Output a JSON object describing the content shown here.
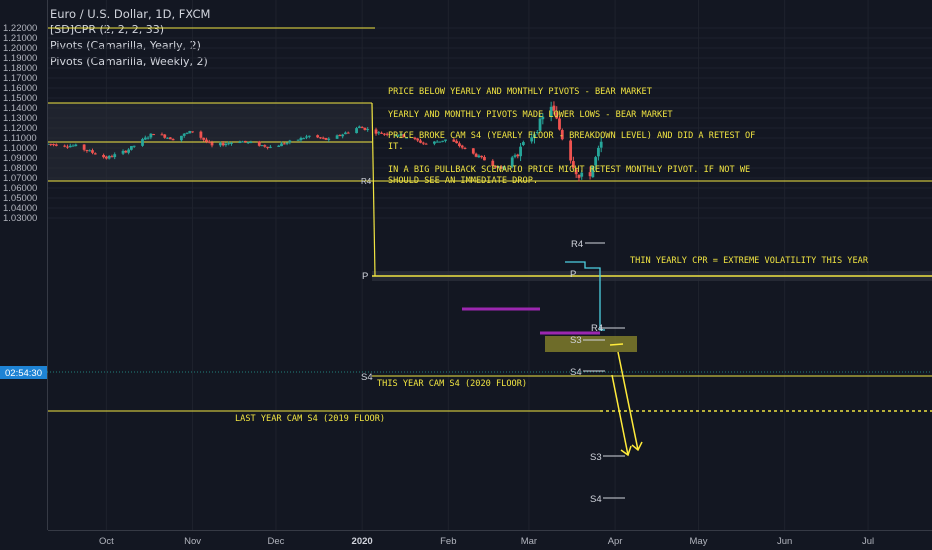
{
  "header": {
    "title": "Euro / U.S. Dollar, 1D, FXCM",
    "indicators": [
      "[SD]CPR (2, 2, 2, 33)",
      "Pivots (Camarilla, Yearly, 2)",
      "Pivots (Camarilla, Weekly, 2)"
    ]
  },
  "price_axis": {
    "labels": [
      "1.22000",
      "1.21000",
      "1.20000",
      "1.19000",
      "1.18000",
      "1.17000",
      "1.16000",
      "1.15000",
      "1.14000",
      "1.13000",
      "1.12000",
      "1.11000",
      "1.10000",
      "1.09000",
      "1.08000",
      "1.07000",
      "1.06000",
      "1.05000",
      "1.04000",
      "1.03000"
    ],
    "countdown": "02:54:30"
  },
  "time_axis": {
    "labels": [
      "Oct",
      "Nov",
      "Dec",
      "2020",
      "Feb",
      "Mar",
      "Apr",
      "May",
      "Jun",
      "Jul"
    ]
  },
  "notes": [
    "PRICE BELOW YEARLY AND MONTHLY PIVOTS - BEAR MARKET",
    "YEARLY AND MONTHLY PIVOTS MADE LOWER LOWS - BEAR MARKET",
    "PRICE BROKE CAM S4 (YEARLY FLOOR - BREAKDOWN LEVEL) AND DID A RETEST OF",
    "IT.",
    "IN A BIG PULLBACK SCENARIO PRICE MIGHT RETEST MONTHLY PIVOT. IF NOT WE",
    "SHOULD SEE AN IMMEDIATE DROP.",
    "THIN YEARLY CPR = EXTREME VOLATILITY THIS YEAR",
    "THIS YEAR CAM S4 (2020 FLOOR)",
    "LAST YEAR CAM S4 (2019 FLOOR)"
  ],
  "pivot_labels": {
    "yearly_p": "P",
    "yearly_r4": "R4",
    "yearly_s4": "S4",
    "weekly_r4_a": "R4",
    "weekly_r4_b": "R4",
    "weekly_s3_a": "S3",
    "weekly_s3_b": "S3",
    "weekly_s4_a": "S4",
    "weekly_s4_b": "S4",
    "weekly_p": "P"
  },
  "colors": {
    "background": "#131722",
    "up": "#26a69a",
    "down": "#ef5350",
    "level": "#f0e442",
    "accent": "#ffeb3b",
    "purple": "#9c27b0",
    "cyan": "#4dd0e1"
  },
  "chart_data": {
    "type": "candlestick",
    "ylim": [
      1.025,
      1.225
    ],
    "x_range": [
      "2019-09-10",
      "2020-07-24"
    ],
    "yearly_levels": {
      "2019_r4": 1.2175,
      "2019_s4": 1.0705,
      "2020_p": 1.1225,
      "2020_s4": 1.0845
    },
    "monthly_pivot_2020_jan": 1.1225,
    "cpr_2019": [
      1.1885,
      1.1735,
      1.1595
    ],
    "projected_levels": {
      "weekly_s3": 1.054,
      "weekly_s4": 1.0365
    },
    "path": [
      [
        "2019-09-10",
        1.104
      ],
      [
        "2019-09-20",
        1.102
      ],
      [
        "2019-10-01",
        1.09
      ],
      [
        "2019-10-08",
        1.097
      ],
      [
        "2019-10-18",
        1.115
      ],
      [
        "2019-10-25",
        1.109
      ],
      [
        "2019-11-01",
        1.117
      ],
      [
        "2019-11-08",
        1.102
      ],
      [
        "2019-11-18",
        1.107
      ],
      [
        "2019-11-29",
        1.101
      ],
      [
        "2019-12-06",
        1.106
      ],
      [
        "2019-12-13",
        1.112
      ],
      [
        "2019-12-20",
        1.108
      ],
      [
        "2019-12-31",
        1.121
      ],
      [
        "2020-01-07",
        1.115
      ],
      [
        "2020-01-15",
        1.113
      ],
      [
        "2020-01-24",
        1.104
      ],
      [
        "2020-02-01",
        1.109
      ],
      [
        "2020-02-10",
        1.094
      ],
      [
        "2020-02-20",
        1.079
      ],
      [
        "2020-02-27",
        1.099
      ],
      [
        "2020-03-03",
        1.116
      ],
      [
        "2020-03-09",
        1.143
      ],
      [
        "2020-03-13",
        1.111
      ],
      [
        "2020-03-19",
        1.07
      ],
      [
        "2020-03-23",
        1.075
      ],
      [
        "2020-03-27",
        1.104
      ]
    ]
  }
}
